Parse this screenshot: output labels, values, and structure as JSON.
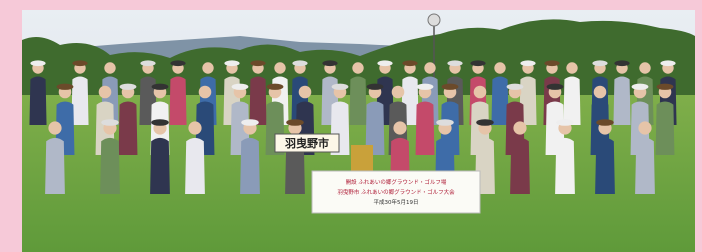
{
  "sign": "羽曳野市",
  "banner": {
    "lines": [
      "開設 ふれあいの郷グラウンド・ゴルフ場",
      "羽曳野市 ふれあいの郷グラウンド・ゴルフ大会",
      "平成30年5月19日"
    ]
  }
}
